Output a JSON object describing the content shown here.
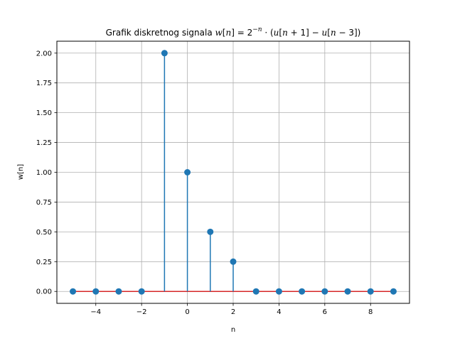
{
  "chart_data": {
    "type": "stem",
    "title": {
      "prefix": "Grafik diskretnog signala ",
      "w": "w",
      "lb1": "[",
      "n1": "n",
      "rb1": "] = 2",
      "exp": "−n",
      "dot": " · (",
      "u1": "u",
      "lb2": "[",
      "n2": "n",
      "plus": " + 1] − ",
      "u2": "u",
      "lb3": "[",
      "n3": "n",
      "tail": " − 3])"
    },
    "xlabel": "n",
    "ylabel": "w[n]",
    "xlim": [
      -5.7,
      9.7
    ],
    "ylim": [
      -0.1,
      2.1
    ],
    "xticks": [
      -4,
      -2,
      0,
      2,
      4,
      6,
      8
    ],
    "xtick_labels": [
      "−4",
      "−2",
      "0",
      "2",
      "4",
      "6",
      "8"
    ],
    "yticks": [
      0.0,
      0.25,
      0.5,
      0.75,
      1.0,
      1.25,
      1.5,
      1.75,
      2.0
    ],
    "ytick_labels": [
      "0.00",
      "0.25",
      "0.50",
      "0.75",
      "1.00",
      "1.25",
      "1.50",
      "1.75",
      "2.00"
    ],
    "grid": true,
    "x": [
      -5,
      -4,
      -3,
      -2,
      -1,
      0,
      1,
      2,
      3,
      4,
      5,
      6,
      7,
      8,
      9
    ],
    "values": [
      0,
      0,
      0,
      0,
      2.0,
      1.0,
      0.5,
      0.25,
      0,
      0,
      0,
      0,
      0,
      0,
      0
    ],
    "colors": {
      "stem": "#1f77b4",
      "marker": "#1f77b4",
      "baseline": "#d62728",
      "grid": "#b0b0b0"
    }
  }
}
